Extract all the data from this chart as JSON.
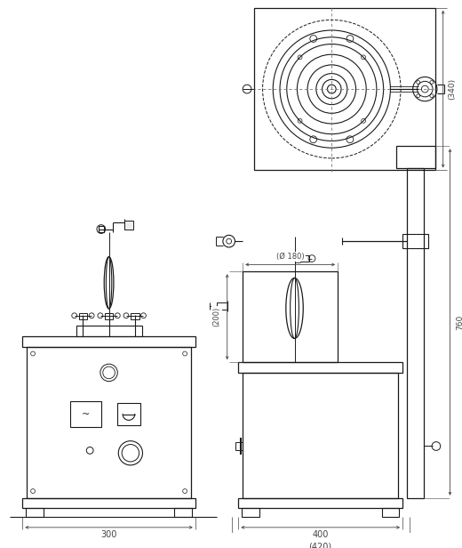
{
  "bg_color": "#ffffff",
  "line_color": "#1a1a1a",
  "dim_color": "#444444",
  "fig_width": 5.2,
  "fig_height": 6.16,
  "dpi": 100,
  "dim_300": "300",
  "dim_400": "400",
  "dim_420": "(420)",
  "dim_340": "(340)",
  "dim_200": "(200)",
  "dim_760": "760",
  "dim_phi180": "(Ø 180)"
}
